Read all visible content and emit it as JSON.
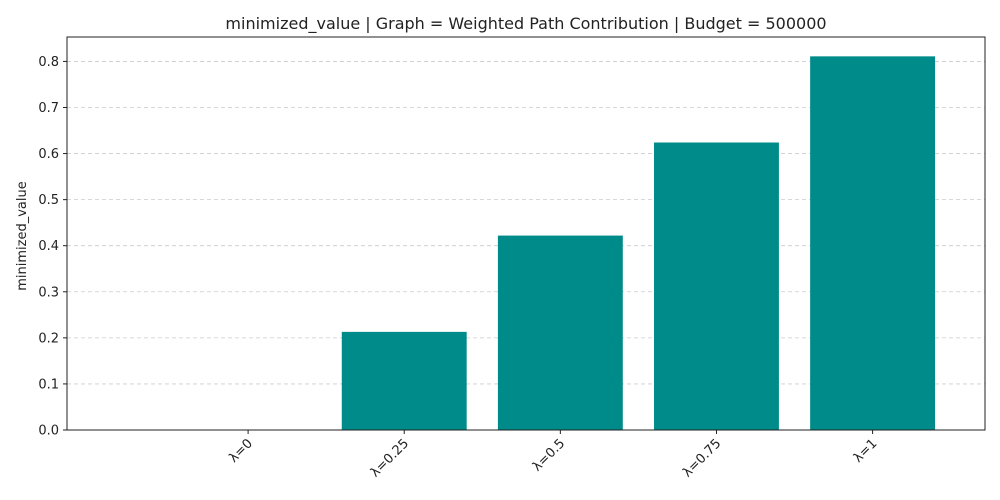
{
  "chart_data": {
    "type": "bar",
    "title": "minimized_value | Graph = Weighted Path Contribution | Budget = 500000",
    "xlabel": "",
    "ylabel": "minimized_value",
    "categories": [
      "λ=0",
      "λ=0.25",
      "λ=0.5",
      "λ=0.75",
      "λ=1"
    ],
    "values": [
      0.0,
      0.213,
      0.422,
      0.624,
      0.811
    ],
    "ylim": [
      0,
      0.853
    ],
    "yticks": [
      0.0,
      0.1,
      0.2,
      0.3,
      0.4,
      0.5,
      0.6,
      0.7,
      0.8
    ],
    "ytick_labels": [
      "0.0",
      "0.1",
      "0.2",
      "0.3",
      "0.4",
      "0.5",
      "0.6",
      "0.7",
      "0.8"
    ],
    "grid": "y-dashed",
    "x_tick_rotation_deg": 45,
    "bar_color": "#008b8b",
    "grid_color": "#cccccc"
  }
}
